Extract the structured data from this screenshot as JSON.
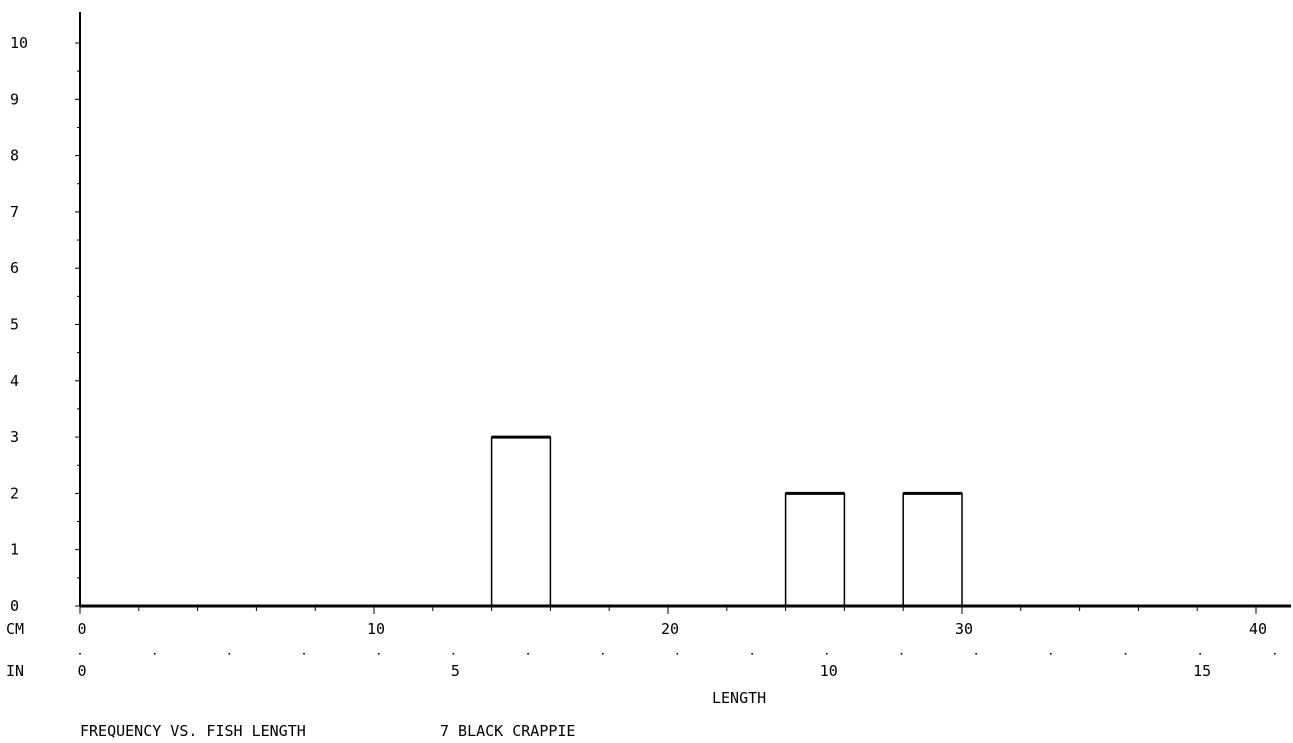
{
  "chart_data": {
    "type": "bar",
    "title": "FREQUENCY VS. FISH LENGTH",
    "subtitle": "7 BLACK CRAPPIE",
    "xlabel": "LENGTH",
    "x_unit_primary": "CM",
    "x_unit_secondary": "IN",
    "xlim_cm": [
      0,
      41
    ],
    "ylim": [
      0,
      10
    ],
    "y_ticks": [
      "0",
      "1",
      "2",
      "3",
      "4",
      "5",
      "6",
      "7",
      "8",
      "9",
      "10"
    ],
    "x_ticks_cm": [
      "0",
      "10",
      "20",
      "30",
      "40"
    ],
    "x_ticks_in": [
      "0",
      "5",
      "10",
      "15"
    ],
    "bins": [
      {
        "x0": 14,
        "x1": 16,
        "value": 3
      },
      {
        "x0": 24,
        "x1": 26,
        "value": 2
      },
      {
        "x0": 28,
        "x1": 30,
        "value": 2
      }
    ],
    "grid": false,
    "legend": "none"
  }
}
